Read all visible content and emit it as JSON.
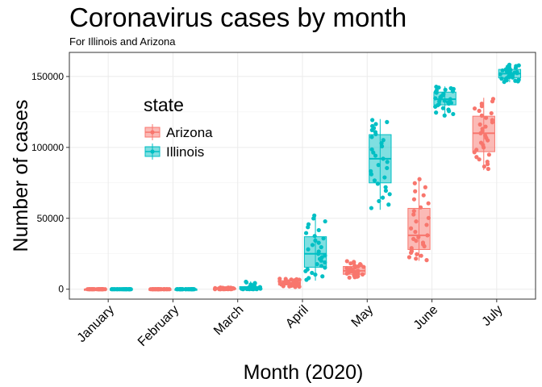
{
  "chart_data": {
    "type": "boxplot",
    "title": "Coronavirus cases by month",
    "subtitle": "For Illinois and Arizona",
    "xlabel": "Month (2020)",
    "ylabel": "Number of cases",
    "categories": [
      "January",
      "February",
      "March",
      "April",
      "May",
      "June",
      "July"
    ],
    "ylim": [
      -7000,
      167000
    ],
    "yticks": [
      0,
      50000,
      100000,
      150000
    ],
    "ytick_labels": [
      "0",
      "50000",
      "100000",
      "150000"
    ],
    "grid": true,
    "legend": {
      "title": "state",
      "placement": "top-left-inside"
    },
    "series": [
      {
        "name": "Arizona",
        "color": "#F8766D",
        "boxes": [
          {
            "month": "January",
            "min": 0,
            "q1": 0,
            "median": 0,
            "q3": 0,
            "max": 1
          },
          {
            "month": "February",
            "min": 0,
            "q1": 0,
            "median": 0,
            "q3": 1,
            "max": 5
          },
          {
            "month": "March",
            "min": 1,
            "q1": 50,
            "median": 300,
            "q3": 700,
            "max": 1200
          },
          {
            "month": "April",
            "min": 1500,
            "q1": 3000,
            "median": 4500,
            "q3": 6000,
            "max": 7500
          },
          {
            "month": "May",
            "min": 8000,
            "q1": 10500,
            "median": 13000,
            "q3": 16000,
            "max": 20000
          },
          {
            "month": "June",
            "min": 20000,
            "q1": 28000,
            "median": 38000,
            "q3": 57000,
            "max": 79000
          },
          {
            "month": "July",
            "min": 84000,
            "q1": 97000,
            "median": 110000,
            "q3": 122000,
            "max": 135000
          }
        ]
      },
      {
        "name": "Illinois",
        "color": "#00BFC4",
        "boxes": [
          {
            "month": "January",
            "min": 0,
            "q1": 0,
            "median": 0,
            "q3": 0,
            "max": 2
          },
          {
            "month": "February",
            "min": 1,
            "q1": 1,
            "median": 2,
            "q3": 3,
            "max": 5
          },
          {
            "month": "March",
            "min": 3,
            "q1": 100,
            "median": 500,
            "q3": 1800,
            "max": 5500
          },
          {
            "month": "April",
            "min": 6000,
            "q1": 15500,
            "median": 25000,
            "q3": 37000,
            "max": 53000
          },
          {
            "month": "May",
            "min": 56000,
            "q1": 75000,
            "median": 92000,
            "q3": 109000,
            "max": 120000
          },
          {
            "month": "June",
            "min": 122000,
            "q1": 130000,
            "median": 134000,
            "q3": 139000,
            "max": 143000
          },
          {
            "month": "July",
            "min": 146000,
            "q1": 149000,
            "median": 152000,
            "q3": 155000,
            "max": 158500
          }
        ]
      }
    ]
  }
}
